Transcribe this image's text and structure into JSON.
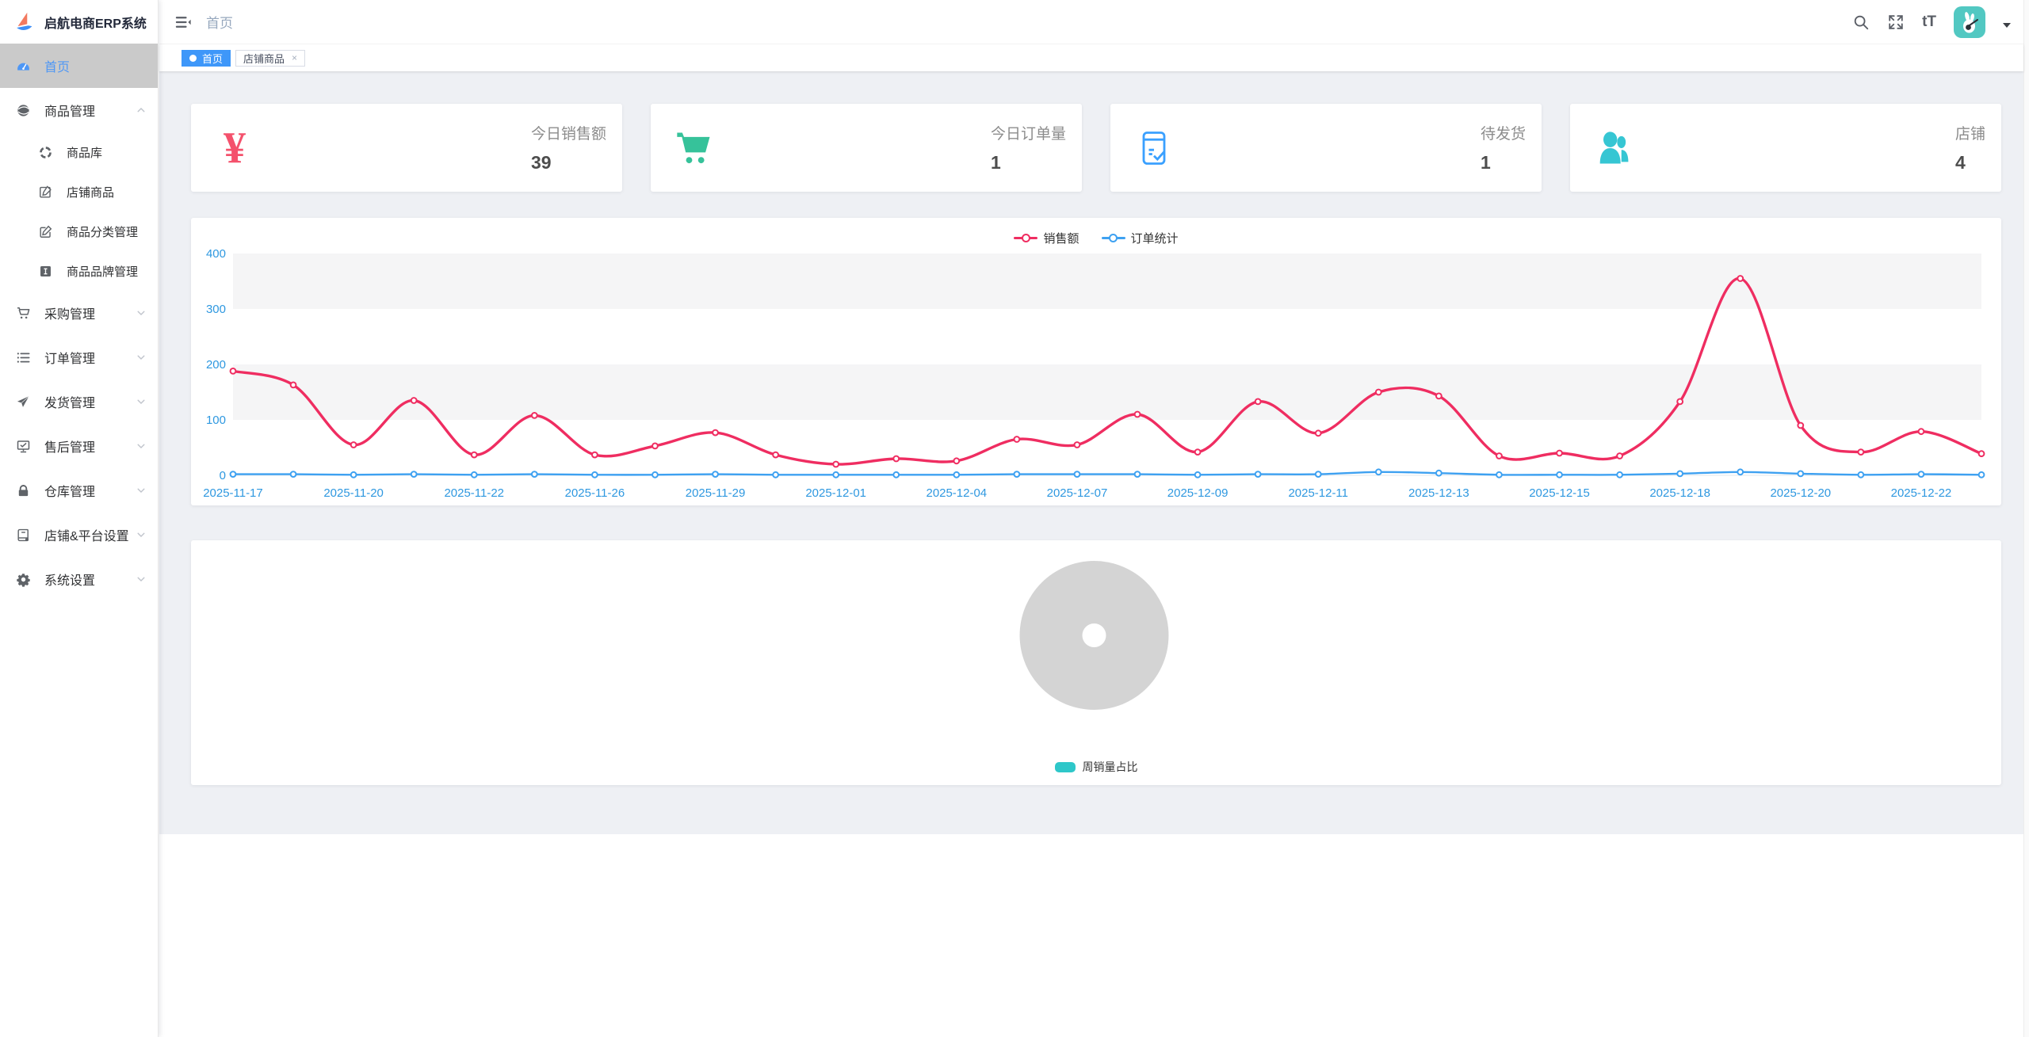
{
  "app": {
    "title": "启航电商ERP系统"
  },
  "colors": {
    "accent_blue": "#3e97f9",
    "active_menu_bg": "#cacaca",
    "active_menu_text": "#4e97f5",
    "axis_label_blue": "#2e98e0",
    "stripe_gray": "#f5f5f6"
  },
  "sidebar": {
    "items": [
      {
        "id": "home",
        "label": "首页",
        "icon": "dashboard-icon",
        "active": true,
        "has_arrow": false
      },
      {
        "id": "goods",
        "label": "商品管理",
        "icon": "globe-icon",
        "has_arrow": true,
        "expanded": true,
        "children": [
          {
            "id": "goods-db",
            "label": "商品库",
            "icon": "compass-icon"
          },
          {
            "id": "shop-goods",
            "label": "店铺商品",
            "icon": "edit-square-icon"
          },
          {
            "id": "goods-category",
            "label": "商品分类管理",
            "icon": "edit-pen-icon"
          },
          {
            "id": "goods-brand",
            "label": "商品品牌管理",
            "icon": "brand-i-icon"
          }
        ]
      },
      {
        "id": "purchase",
        "label": "采购管理",
        "icon": "cart-outline-icon",
        "has_arrow": true
      },
      {
        "id": "orders",
        "label": "订单管理",
        "icon": "list-icon",
        "has_arrow": true
      },
      {
        "id": "shipping",
        "label": "发货管理",
        "icon": "send-icon",
        "has_arrow": true
      },
      {
        "id": "aftersale",
        "label": "售后管理",
        "icon": "monitor-check-icon",
        "has_arrow": true
      },
      {
        "id": "warehouse",
        "label": "仓库管理",
        "icon": "lock-icon",
        "has_arrow": true
      },
      {
        "id": "platform",
        "label": "店铺&平台设置",
        "icon": "ledger-icon",
        "has_arrow": true
      },
      {
        "id": "system",
        "label": "系统设置",
        "icon": "gear-icon",
        "has_arrow": true
      }
    ]
  },
  "navbar": {
    "breadcrumb": "首页",
    "font_size_icon_text": "tT",
    "icons": [
      "hamburger-icon",
      "search-icon",
      "fullscreen-icon",
      "font-size-icon",
      "avatar",
      "dropdown-caret-icon"
    ]
  },
  "tags": [
    {
      "id": "home",
      "label": "首页",
      "active": true,
      "closable": false
    },
    {
      "id": "shop-goods",
      "label": "店铺商品",
      "active": false,
      "closable": true
    }
  ],
  "stats": [
    {
      "id": "sales-today",
      "title": "今日销售额",
      "value": "39",
      "icon": "yen-icon",
      "icon_text": "¥",
      "color": "#f4516c"
    },
    {
      "id": "orders-today",
      "title": "今日订单量",
      "value": "1",
      "icon": "cart-icon",
      "color": "#36c29a"
    },
    {
      "id": "to-ship",
      "title": "待发货",
      "value": "1",
      "icon": "package-check-icon",
      "color": "#3aa0ff"
    },
    {
      "id": "shops",
      "title": "店铺",
      "value": "4",
      "icon": "users-icon",
      "color": "#36c6d3"
    }
  ],
  "chart_data": [
    {
      "type": "line",
      "title": "",
      "xlabel": "",
      "ylabel": "",
      "ylim": [
        0,
        400
      ],
      "y_ticks": [
        0,
        100,
        200,
        300,
        400
      ],
      "grid": "horizontal-stripes",
      "legend_position": "top-center",
      "x_tick_labels": [
        "2025-11-17",
        "2025-11-20",
        "2025-11-22",
        "2025-11-26",
        "2025-11-29",
        "2025-12-01",
        "2025-12-04",
        "2025-12-07",
        "2025-12-09",
        "2025-12-11",
        "2025-12-13",
        "2025-12-15",
        "2025-12-18",
        "2025-12-20",
        "2025-12-22"
      ],
      "label_point_indices": [
        0,
        2,
        4,
        6,
        8,
        10,
        12,
        14,
        16,
        18,
        20,
        22,
        24,
        26,
        28
      ],
      "series": [
        {
          "name": "销售额",
          "color": "#ef2d61",
          "values": [
            188,
            163,
            55,
            135,
            37,
            108,
            37,
            53,
            77,
            37,
            20,
            30,
            26,
            65,
            55,
            110,
            42,
            133,
            76,
            150,
            143,
            35,
            40,
            35,
            133,
            355,
            90,
            42,
            79,
            39
          ]
        },
        {
          "name": "订单统计",
          "color": "#3ea1f1",
          "values": [
            2,
            2,
            1,
            2,
            1,
            2,
            1,
            1,
            2,
            1,
            1,
            1,
            1,
            2,
            2,
            2,
            1,
            2,
            2,
            6,
            4,
            1,
            1,
            1,
            3,
            6,
            3,
            1,
            2,
            1
          ]
        }
      ]
    },
    {
      "type": "pie",
      "title": "",
      "legend_position": "bottom-center",
      "series": [
        {
          "name": "周销量占比",
          "values": [],
          "placeholder": true
        }
      ],
      "placeholder_color": "#d4d4d4",
      "legend_color": "#2ec7c9"
    }
  ]
}
